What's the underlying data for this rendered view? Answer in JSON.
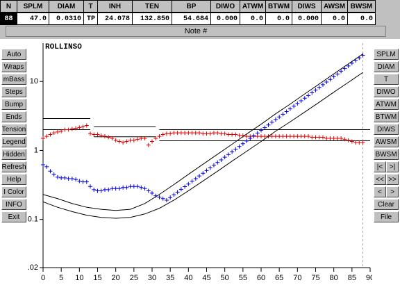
{
  "header": {
    "columns": [
      "N",
      "SPLM",
      "DIAM",
      "T",
      "INH",
      "TEN",
      "BP",
      "DIWO",
      "ATWM",
      "BTWM",
      "DIWS",
      "AWSM",
      "BWSM"
    ],
    "values": [
      "88",
      "47.0",
      "0.0310",
      "TP",
      "24.078",
      "132.850",
      "54.684",
      "0.000",
      "0.0",
      "0.0",
      "0.000",
      "0.0",
      "0.0"
    ]
  },
  "note": "Note #",
  "left_buttons": [
    "Auto",
    "Wraps",
    "mBass",
    "Steps",
    "Bump",
    "Ends",
    "Tension",
    "Legend",
    "Hidden",
    "Refresh",
    "Help",
    "I Color",
    "INFO",
    "Exit"
  ],
  "right_buttons": [
    [
      "SPLM"
    ],
    [
      "DIAM"
    ],
    [
      "T"
    ],
    [
      "DIWO"
    ],
    [
      "ATWM"
    ],
    [
      "BTWM"
    ],
    [
      "DIWS"
    ],
    [
      "AWSM"
    ],
    [
      "BWSM"
    ],
    [
      "|<",
      ">|"
    ],
    [
      "<<",
      ">>"
    ],
    [
      "<",
      ">"
    ],
    [
      "Clear"
    ],
    [
      "File"
    ]
  ],
  "chart_data": {
    "type": "scatter",
    "title": "ROLLINSO",
    "log_y": true,
    "xlim": [
      0,
      90
    ],
    "xticks": [
      0,
      5,
      10,
      15,
      20,
      25,
      30,
      35,
      40,
      45,
      50,
      55,
      60,
      65,
      70,
      75,
      80,
      85,
      90
    ],
    "ylim": [
      0.02,
      36
    ],
    "yticks": [
      0.02,
      0.1,
      1,
      10
    ],
    "x": [
      0,
      1,
      2,
      3,
      4,
      5,
      6,
      7,
      8,
      9,
      10,
      11,
      12,
      13,
      14,
      15,
      16,
      17,
      18,
      19,
      20,
      21,
      22,
      23,
      24,
      25,
      26,
      27,
      28,
      29,
      30,
      31,
      32,
      33,
      34,
      35,
      36,
      37,
      38,
      39,
      40,
      41,
      42,
      43,
      44,
      45,
      46,
      47,
      48,
      49,
      50,
      51,
      52,
      53,
      54,
      55,
      56,
      57,
      58,
      59,
      60,
      61,
      62,
      63,
      64,
      65,
      66,
      67,
      68,
      69,
      70,
      71,
      72,
      73,
      74,
      75,
      76,
      77,
      78,
      79,
      80,
      81,
      82,
      83,
      84,
      85,
      86,
      87,
      88
    ],
    "cursor_x": 88,
    "series": [
      {
        "style": "marker",
        "color": "#e00000",
        "values": [
          1.5,
          1.6,
          1.7,
          1.8,
          1.85,
          1.9,
          2.0,
          2.0,
          2.05,
          2.1,
          2.15,
          2.2,
          2.3,
          1.75,
          1.7,
          1.7,
          1.65,
          1.6,
          1.55,
          1.5,
          1.4,
          1.35,
          1.3,
          1.35,
          1.4,
          1.4,
          1.45,
          1.5,
          1.5,
          1.2,
          1.35,
          1.5,
          1.6,
          1.7,
          1.75,
          1.75,
          1.8,
          1.8,
          1.8,
          1.8,
          1.8,
          1.8,
          1.8,
          1.8,
          1.75,
          1.75,
          1.75,
          1.8,
          1.8,
          1.75,
          1.75,
          1.7,
          1.7,
          1.7,
          1.65,
          1.65,
          1.6,
          1.6,
          1.6,
          1.6,
          1.6,
          1.6,
          1.6,
          1.6,
          1.6,
          1.6,
          1.6,
          1.6,
          1.6,
          1.6,
          1.6,
          1.6,
          1.6,
          1.6,
          1.55,
          1.55,
          1.55,
          1.55,
          1.5,
          1.5,
          1.5,
          1.5,
          1.5,
          1.45,
          1.4,
          1.35,
          1.3,
          1.3,
          1.3
        ]
      },
      {
        "style": "marker",
        "color": "#0000e0",
        "values": [
          0.62,
          0.58,
          0.5,
          0.45,
          0.41,
          0.4,
          0.4,
          0.39,
          0.39,
          0.38,
          0.36,
          0.35,
          0.35,
          0.3,
          0.27,
          0.26,
          0.26,
          0.27,
          0.27,
          0.28,
          0.28,
          0.28,
          0.29,
          0.29,
          0.3,
          0.3,
          0.3,
          0.29,
          0.28,
          0.26,
          0.24,
          0.22,
          0.21,
          0.2,
          0.19,
          0.208,
          0.228,
          0.249,
          0.273,
          0.299,
          0.326,
          0.357,
          0.39,
          0.427,
          0.467,
          0.511,
          0.558,
          0.611,
          0.668,
          0.73,
          0.798,
          0.873,
          0.955,
          1.04,
          1.14,
          1.25,
          1.37,
          1.5,
          1.64,
          1.79,
          1.96,
          2.14,
          2.34,
          2.56,
          2.8,
          3.06,
          3.35,
          3.66,
          4.01,
          4.38,
          4.79,
          5.24,
          5.73,
          6.27,
          6.86,
          7.5,
          8.2,
          8.97,
          9.81,
          10.7,
          11.7,
          12.8,
          14.1,
          15.4,
          16.8,
          18.4,
          20.1,
          22.0,
          24.0
        ]
      },
      {
        "style": "line",
        "color": "#000000",
        "x": [
          0,
          4,
          8,
          12,
          16,
          20,
          24,
          28,
          32,
          36,
          40,
          44,
          48,
          52,
          56,
          60,
          64,
          68,
          72,
          76,
          80,
          84,
          88
        ],
        "values": [
          0.23,
          0.2,
          0.17,
          0.15,
          0.14,
          0.135,
          0.14,
          0.17,
          0.23,
          0.32,
          0.45,
          0.63,
          0.88,
          1.23,
          1.73,
          2.4,
          3.4,
          4.7,
          6.6,
          9.2,
          12.9,
          18,
          25
        ]
      },
      {
        "style": "line",
        "color": "#000000",
        "x": [
          0,
          4,
          8,
          12,
          16,
          20,
          24,
          28,
          32,
          36,
          40,
          44,
          48,
          52,
          56,
          60,
          64,
          68,
          72,
          76,
          80,
          84,
          88
        ],
        "values": [
          0.18,
          0.15,
          0.13,
          0.115,
          0.107,
          0.104,
          0.107,
          0.12,
          0.145,
          0.19,
          0.26,
          0.36,
          0.5,
          0.7,
          0.97,
          1.35,
          1.9,
          2.6,
          3.6,
          5.0,
          7.0,
          9.7,
          13.5
        ]
      }
    ],
    "reference_lines": [
      {
        "x0": 0,
        "x1": 13,
        "value": 2.9
      },
      {
        "x0": 0,
        "x1": 13,
        "value": 2.0
      },
      {
        "x0": 14,
        "x1": 31,
        "value": 2.2
      },
      {
        "x0": 14,
        "x1": 31,
        "value": 1.58
      },
      {
        "x0": 32,
        "x1": 90,
        "value": 2.0
      },
      {
        "x0": 32,
        "x1": 90,
        "value": 1.38
      }
    ]
  }
}
